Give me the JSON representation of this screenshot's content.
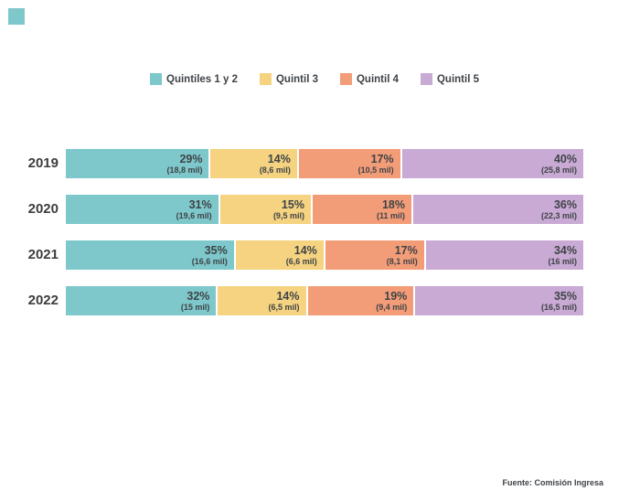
{
  "decor": {
    "corner_square_color": "#7EC8CB"
  },
  "legend": {
    "items": [
      {
        "label": "Quintiles 1 y 2",
        "color": "#7EC8CB"
      },
      {
        "label": "Quintil 3",
        "color": "#F5D381"
      },
      {
        "label": "Quintil 4",
        "color": "#F39D78"
      },
      {
        "label": "Quintil 5",
        "color": "#C9AAD5"
      }
    ]
  },
  "chart_data": {
    "type": "bar",
    "orientation": "horizontal",
    "stacked": true,
    "units": "percent (100% stacked), with absolute values in thousands (mil)",
    "grid": false,
    "legend_position": "top-center",
    "categories": [
      "2019",
      "2020",
      "2021",
      "2022"
    ],
    "series": [
      {
        "name": "Quintiles 1 y 2",
        "color": "#7EC8CB",
        "percent": [
          29,
          31,
          35,
          32
        ],
        "value_labels": [
          "(18,8 mil)",
          "(19,6 mil)",
          "(16,6 mil)",
          "(15 mil)"
        ]
      },
      {
        "name": "Quintil 3",
        "color": "#F5D381",
        "percent": [
          14,
          15,
          14,
          14
        ],
        "value_labels": [
          "(8,6 mil)",
          "(9,5 mil)",
          "(6,6 mil)",
          "(6,5 mil)"
        ]
      },
      {
        "name": "Quintil 4",
        "color": "#F39D78",
        "percent": [
          17,
          18,
          17,
          19
        ],
        "value_labels": [
          "(10,5 mil)",
          "(11 mil)",
          "(8,1 mil)",
          "(9,4 mil)"
        ]
      },
      {
        "name": "Quintil 5",
        "color": "#C9AAD5",
        "percent": [
          40,
          36,
          34,
          35
        ],
        "value_labels": [
          "(25,8 mil)",
          "(22,3 mil)",
          "(16 mil)",
          "(16,5 mil)"
        ]
      }
    ]
  },
  "footer": {
    "prefix": "Fuente:",
    "source": "Comisión Ingresa"
  }
}
